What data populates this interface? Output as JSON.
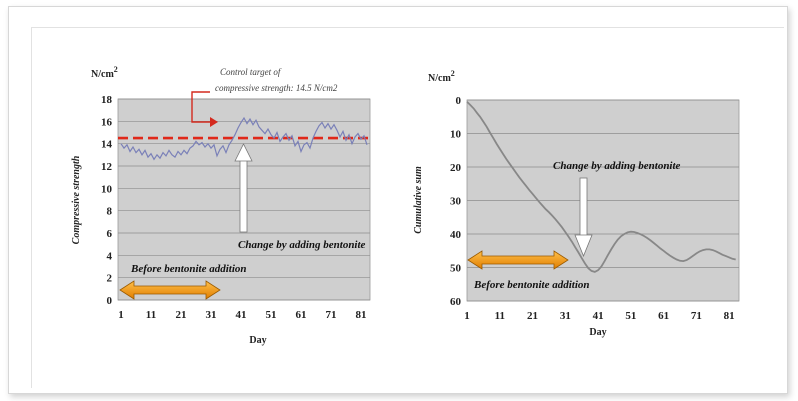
{
  "chart_data": [
    {
      "type": "line",
      "title": "",
      "ylabel": "Compressive strength",
      "xlabel": "Day",
      "unit_label": "N/cm",
      "unit_exp": "2",
      "ylim": [
        0,
        18
      ],
      "xlim": [
        0,
        84
      ],
      "yticks": [
        "0",
        "2",
        "4",
        "6",
        "8",
        "10",
        "12",
        "14",
        "16",
        "18"
      ],
      "xticks": [
        "1",
        "11",
        "21",
        "31",
        "41",
        "51",
        "61",
        "71",
        "81"
      ],
      "grid": true,
      "target_line": 14.5,
      "annotations": {
        "target_note_line1": "Control target of",
        "target_note_line2": "compressive strength: 14.5 N/cm2",
        "change_label": "Change by adding bentonite",
        "before_label": "Before bentonite addition"
      },
      "series": [
        {
          "x": [
            1,
            2,
            3,
            4,
            5,
            6,
            7,
            8,
            9,
            10,
            11,
            12,
            13,
            14,
            15,
            16,
            17,
            18,
            19,
            20,
            21,
            22,
            23,
            24,
            25,
            26,
            27,
            28,
            29,
            30,
            31,
            32,
            33,
            34,
            35,
            36,
            37,
            38,
            39,
            40,
            41,
            42,
            43,
            44,
            45,
            46,
            47,
            48,
            49,
            50,
            51,
            52,
            53,
            54,
            55,
            56,
            57,
            58,
            59,
            60,
            61,
            62,
            63,
            64,
            65,
            66,
            67,
            68,
            69,
            70,
            71,
            72,
            73,
            74,
            75,
            76,
            77,
            78,
            79,
            80,
            81,
            82,
            83
          ],
          "values": [
            14.0,
            13.6,
            13.9,
            13.3,
            13.7,
            13.2,
            13.5,
            13.0,
            13.4,
            12.8,
            13.1,
            12.6,
            13.0,
            12.7,
            13.2,
            12.9,
            13.4,
            13.0,
            12.8,
            13.3,
            13.0,
            13.4,
            13.1,
            13.6,
            13.8,
            14.2,
            13.9,
            14.1,
            13.7,
            14.0,
            13.6,
            13.9,
            12.9,
            13.5,
            13.8,
            13.2,
            13.9,
            14.3,
            14.8,
            15.4,
            15.9,
            16.3,
            15.8,
            16.2,
            15.7,
            16.1,
            15.5,
            15.2,
            14.9,
            15.3,
            14.8,
            14.5,
            15.0,
            14.2,
            14.6,
            14.9,
            14.3,
            14.7,
            13.8,
            14.2,
            13.3,
            13.9,
            14.1,
            13.6,
            14.5,
            15.1,
            15.6,
            15.9,
            15.4,
            15.8,
            15.3,
            15.7,
            15.2,
            14.6,
            15.1,
            14.3,
            14.8,
            14.0,
            14.6,
            14.9,
            14.4,
            14.7,
            13.9
          ]
        }
      ]
    },
    {
      "type": "line",
      "title": "",
      "ylabel": "Cumulative sum",
      "xlabel": "Day",
      "unit_label": "N/cm",
      "unit_exp": "2",
      "ylim": [
        0,
        60
      ],
      "yinverted": true,
      "xlim": [
        1,
        84
      ],
      "yticks": [
        "0",
        "10",
        "20",
        "30",
        "40",
        "50",
        "60"
      ],
      "xticks": [
        "1",
        "11",
        "21",
        "31",
        "41",
        "51",
        "61",
        "71",
        "81"
      ],
      "grid": true,
      "annotations": {
        "change_label": "Change by adding bentonite",
        "before_label": "Before bentonite addition"
      },
      "series": [
        {
          "x": [
            1,
            2,
            3,
            4,
            5,
            6,
            7,
            8,
            9,
            10,
            11,
            12,
            13,
            14,
            15,
            16,
            17,
            18,
            19,
            20,
            21,
            22,
            23,
            24,
            25,
            26,
            27,
            28,
            29,
            30,
            31,
            32,
            33,
            34,
            35,
            36,
            37,
            38,
            39,
            40,
            41,
            42,
            43,
            44,
            45,
            46,
            47,
            48,
            49,
            50,
            51,
            52,
            53,
            54,
            55,
            56,
            57,
            58,
            59,
            60,
            61,
            62,
            63,
            64,
            65,
            66,
            67,
            68,
            69,
            70,
            71,
            72,
            73,
            74,
            75,
            76,
            77,
            78,
            79,
            80,
            81,
            82,
            83
          ],
          "values": [
            0.5,
            1.5,
            2.5,
            3.8,
            5.0,
            6.5,
            8.0,
            9.7,
            11.3,
            13.0,
            14.6,
            16.1,
            17.6,
            19.0,
            20.4,
            21.8,
            23.1,
            24.4,
            25.6,
            26.9,
            28.0,
            29.2,
            30.4,
            31.5,
            32.6,
            33.5,
            34.5,
            35.6,
            36.8,
            38.0,
            39.4,
            40.8,
            42.3,
            43.9,
            45.5,
            47.2,
            48.8,
            50.2,
            51.0,
            51.3,
            50.8,
            49.7,
            48.1,
            46.3,
            44.6,
            43.0,
            41.7,
            40.7,
            40.0,
            39.5,
            39.3,
            39.4,
            39.7,
            40.1,
            40.6,
            41.2,
            41.9,
            42.7,
            43.5,
            44.3,
            45.0,
            45.8,
            46.5,
            47.1,
            47.6,
            48.0,
            48.1,
            47.8,
            47.2,
            46.5,
            45.8,
            45.2,
            44.8,
            44.6,
            44.6,
            44.8,
            45.2,
            45.7,
            46.2,
            46.6,
            47.0,
            47.4,
            47.6
          ]
        }
      ]
    }
  ]
}
